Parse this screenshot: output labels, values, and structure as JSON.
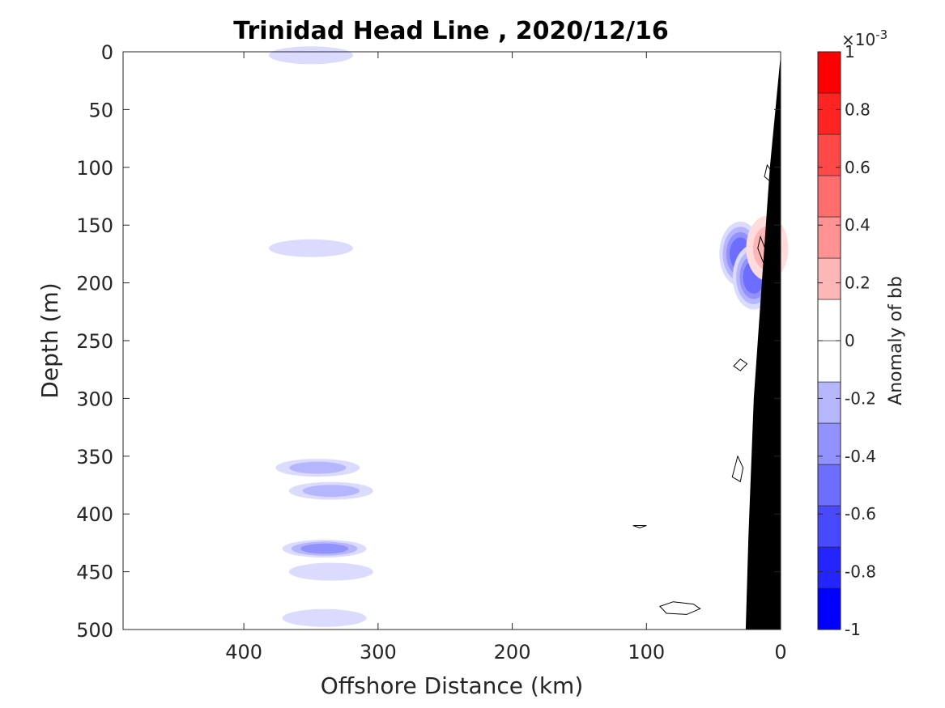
{
  "chart_data": {
    "type": "contour",
    "title": "Trinidad Head Line , 2020/12/16",
    "xlabel": "Offshore Distance (km)",
    "ylabel": "Depth (m)",
    "xlim": [
      490,
      0
    ],
    "ylim": [
      0,
      500
    ],
    "x_reversed": true,
    "y_reversed": true,
    "xticks": [
      400,
      300,
      200,
      100,
      0
    ],
    "yticks": [
      0,
      50,
      100,
      150,
      200,
      250,
      300,
      350,
      400,
      450,
      500
    ],
    "colorbar": {
      "label": "Anomaly of bb",
      "multiplier": "×10",
      "exponent": "-3",
      "range": [
        -1,
        1
      ],
      "ticks": [
        -1,
        -0.8,
        -0.6,
        -0.4,
        -0.2,
        0,
        0.2,
        0.4,
        0.6,
        0.8,
        1
      ],
      "levels": 14,
      "colormap": "blue-white-red"
    },
    "features": [
      {
        "x": 345,
        "depth": 360,
        "anomaly": -0.3
      },
      {
        "x": 335,
        "depth": 380,
        "anomaly": -0.25
      },
      {
        "x": 340,
        "depth": 430,
        "anomaly": -0.4
      },
      {
        "x": 335,
        "depth": 450,
        "anomaly": -0.15
      },
      {
        "x": 340,
        "depth": 490,
        "anomaly": -0.15
      },
      {
        "x": 350,
        "depth": 170,
        "anomaly": -0.15
      },
      {
        "x": 350,
        "depth": 3,
        "anomaly": -0.2
      },
      {
        "x": 30,
        "depth": 175,
        "anomaly": -0.55
      },
      {
        "x": 20,
        "depth": 195,
        "anomaly": -0.5
      },
      {
        "x": 10,
        "depth": 170,
        "anomaly": 0.35
      }
    ],
    "bathymetry_fill": "#000000"
  }
}
